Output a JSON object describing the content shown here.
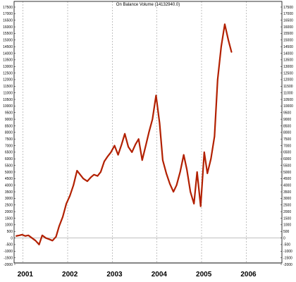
{
  "chart_data": {
    "type": "line",
    "title": "On Balance Volume (14132940.0)",
    "xlabel": "",
    "ylabel": "",
    "x_tick_labels": [
      "2001",
      "2002",
      "2003",
      "2004",
      "2005",
      "2006"
    ],
    "y_tick_labels": [
      "17500",
      "17000",
      "16500",
      "16000",
      "15500",
      "15000",
      "14500",
      "14000",
      "13500",
      "13000",
      "12500",
      "12000",
      "11500",
      "11000",
      "10500",
      "10000",
      "9500",
      "9000",
      "8500",
      "8000",
      "7500",
      "7000",
      "6500",
      "6000",
      "5500",
      "5000",
      "4500",
      "4000",
      "3500",
      "3000",
      "2500",
      "2000",
      "1500",
      "1000",
      "500",
      "0",
      "-500",
      "-1000",
      "-1500",
      "-2000"
    ],
    "ylim": [
      -2000,
      17500
    ],
    "xlim": [
      2000.8,
      2006.8
    ],
    "grid": true,
    "grid_style": "dashed",
    "line_color": "#b22000",
    "series": [
      {
        "x": [
          2000.85,
          2000.92,
          2000.98,
          2001.05,
          2001.12,
          2001.2,
          2001.28,
          2001.36,
          2001.43,
          2001.51,
          2001.59,
          2001.66,
          2001.74,
          2001.81,
          2001.89,
          2001.97,
          2002.05,
          2002.13,
          2002.21,
          2002.28,
          2002.35,
          2002.44,
          2002.52,
          2002.59,
          2002.67,
          2002.74,
          2002.82,
          2002.9,
          2002.97,
          2003.05,
          2003.13,
          2003.21,
          2003.28,
          2003.36,
          2003.44,
          2003.52,
          2003.59,
          2003.67,
          2003.75,
          2003.82,
          2003.9,
          2003.98,
          2004.06,
          2004.13,
          2004.21,
          2004.29,
          2004.37,
          2004.44,
          2004.52,
          2004.6,
          2004.67,
          2004.75,
          2004.83,
          2004.9,
          2004.98,
          2005.06,
          2005.13,
          2005.21,
          2005.29,
          2005.36,
          2005.44,
          2005.52,
          2005.6,
          2005.67
        ],
        "values": [
          150,
          200,
          250,
          150,
          200,
          0,
          -200,
          -500,
          200,
          0,
          -100,
          -200,
          100,
          900,
          1600,
          2600,
          3200,
          4000,
          5100,
          4800,
          4500,
          4300,
          4600,
          4800,
          4700,
          5000,
          5800,
          6200,
          6500,
          7000,
          6300,
          7100,
          7900,
          6900,
          6500,
          7100,
          7500,
          5900,
          7000,
          8000,
          9000,
          10800,
          8700,
          5900,
          4900,
          4100,
          3500,
          4000,
          5000,
          6300,
          5200,
          3500,
          2600,
          5000,
          2400,
          6500,
          4900,
          6000,
          7700,
          12000,
          14500,
          16200,
          15000,
          14100
        ]
      }
    ]
  }
}
